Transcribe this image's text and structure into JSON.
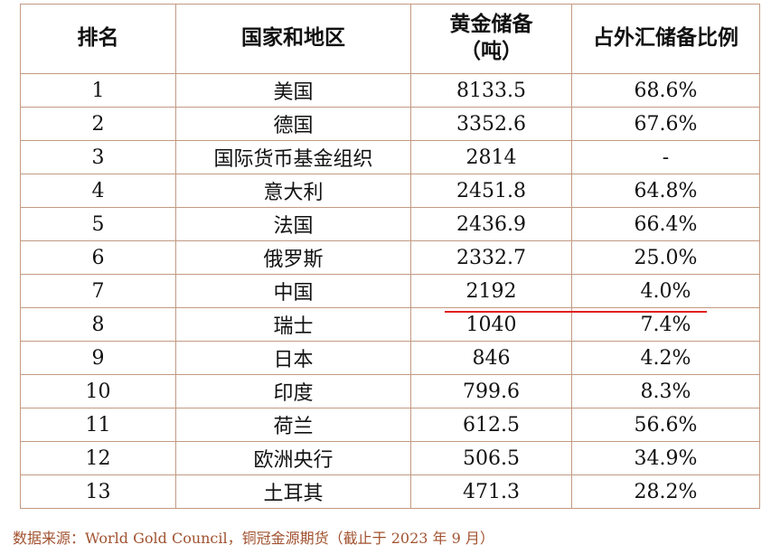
{
  "table": {
    "headers": {
      "rank": "排名",
      "country": "国家和地区",
      "gold_line1": "黄金储备",
      "gold_line2": "（吨）",
      "ratio": "占外汇储备比例"
    },
    "rows": [
      {
        "rank": "1",
        "country": "美国",
        "gold": "8133.5",
        "ratio": "68.6%"
      },
      {
        "rank": "2",
        "country": "德国",
        "gold": "3352.6",
        "ratio": "67.6%"
      },
      {
        "rank": "3",
        "country": "国际货币基金组织",
        "gold": "2814",
        "ratio": "-"
      },
      {
        "rank": "4",
        "country": "意大利",
        "gold": "2451.8",
        "ratio": "64.8%"
      },
      {
        "rank": "5",
        "country": "法国",
        "gold": "2436.9",
        "ratio": "66.4%"
      },
      {
        "rank": "6",
        "country": "俄罗斯",
        "gold": "2332.7",
        "ratio": "25.0%"
      },
      {
        "rank": "7",
        "country": "中国",
        "gold": "2192",
        "ratio": "4.0%"
      },
      {
        "rank": "8",
        "country": "瑞士",
        "gold": "1040",
        "ratio": "7.4%"
      },
      {
        "rank": "9",
        "country": "日本",
        "gold": "846",
        "ratio": "4.2%"
      },
      {
        "rank": "10",
        "country": "印度",
        "gold": "799.6",
        "ratio": "8.3%"
      },
      {
        "rank": "11",
        "country": "荷兰",
        "gold": "612.5",
        "ratio": "56.6%"
      },
      {
        "rank": "12",
        "country": "欧洲央行",
        "gold": "506.5",
        "ratio": "34.9%"
      },
      {
        "rank": "13",
        "country": "土耳其",
        "gold": "471.3",
        "ratio": "28.2%"
      }
    ],
    "highlight_row_rank": "7",
    "border_color": "#c29a82",
    "highlight_color": "#e02020"
  },
  "source": {
    "text": "数据来源：World Gold Council，铜冠金源期货（截止于 2023 年 9 月）",
    "color": "#a1522f"
  }
}
